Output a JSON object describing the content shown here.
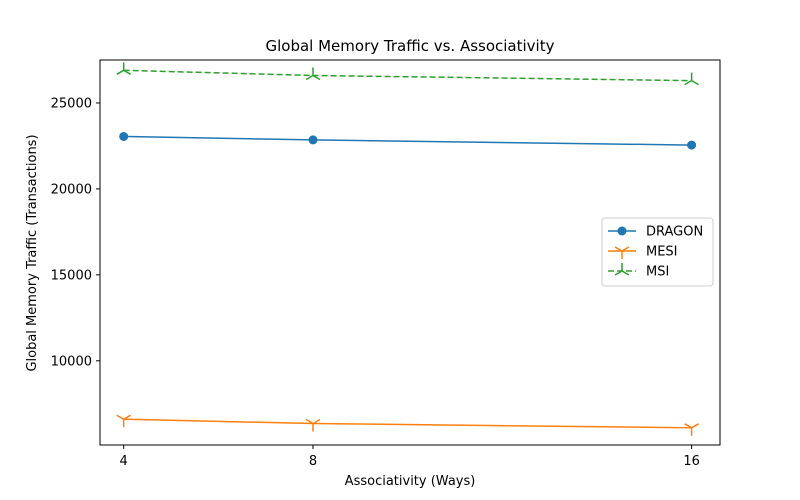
{
  "chart_data": {
    "type": "line",
    "title": "Global Memory Traffic vs. Associativity",
    "xlabel": "Associativity (Ways)",
    "ylabel": "Global Memory Traffic (Transactions)",
    "x": [
      4,
      8,
      16
    ],
    "x_ticks": [
      "4",
      "8",
      "16"
    ],
    "xlim": [
      3.5,
      16.6
    ],
    "ylim": [
      5100,
      27500
    ],
    "y_ticks": [
      10000,
      15000,
      20000,
      25000
    ],
    "grid": false,
    "legend_position": "center-right",
    "series": [
      {
        "name": "DRAGON",
        "values": [
          23050,
          22850,
          22550
        ],
        "color": "#1f77b4",
        "line_style": "solid",
        "marker": "circle"
      },
      {
        "name": "MESI",
        "values": [
          6600,
          6350,
          6100
        ],
        "color": "#ff7f0e",
        "line_style": "solid",
        "marker": "tri_down"
      },
      {
        "name": "MSI",
        "values": [
          26900,
          26600,
          26300
        ],
        "color": "#2ca02c",
        "line_style": "dashed",
        "marker": "tri_up"
      }
    ]
  }
}
